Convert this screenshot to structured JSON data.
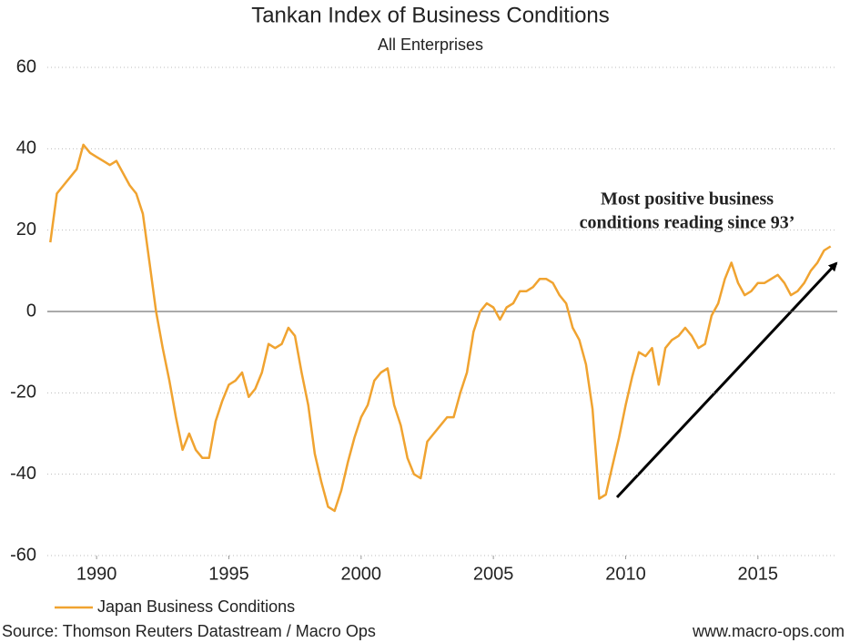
{
  "chart_data": {
    "type": "line",
    "title": "Tankan Index of Business Conditions",
    "subtitle": "All Enterprises",
    "annotation": [
      "Most positive business",
      "conditions reading since 93’"
    ],
    "source": "Source: Thomson Reuters Datastream / Macro Ops",
    "website": "www.macro-ops.com",
    "xlim": [
      1988,
      2018
    ],
    "xticks": [
      1990,
      1995,
      2000,
      2005,
      2010,
      2015
    ],
    "ylim": [
      -60,
      60
    ],
    "yticks": [
      -60,
      -40,
      -20,
      0,
      20,
      40,
      60
    ],
    "grid": true,
    "legend": "bottom-left",
    "x": [
      1988.25,
      1988.5,
      1988.75,
      1989,
      1989.25,
      1989.5,
      1989.75,
      1990,
      1990.25,
      1990.5,
      1990.75,
      1991,
      1991.25,
      1991.5,
      1991.75,
      1992,
      1992.25,
      1992.5,
      1992.75,
      1993,
      1993.25,
      1993.5,
      1993.75,
      1994,
      1994.25,
      1994.5,
      1994.75,
      1995,
      1995.25,
      1995.5,
      1995.75,
      1996,
      1996.25,
      1996.5,
      1996.75,
      1997,
      1997.25,
      1997.5,
      1997.75,
      1998,
      1998.25,
      1998.5,
      1998.75,
      1999,
      1999.25,
      1999.5,
      1999.75,
      2000,
      2000.25,
      2000.5,
      2000.75,
      2001,
      2001.25,
      2001.5,
      2001.75,
      2002,
      2002.25,
      2002.5,
      2002.75,
      2003,
      2003.25,
      2003.5,
      2003.75,
      2004,
      2004.25,
      2004.5,
      2004.75,
      2005,
      2005.25,
      2005.5,
      2005.75,
      2006,
      2006.25,
      2006.5,
      2006.75,
      2007,
      2007.25,
      2007.5,
      2007.75,
      2008,
      2008.25,
      2008.5,
      2008.75,
      2009,
      2009.25,
      2009.5,
      2009.75,
      2010,
      2010.25,
      2010.5,
      2010.75,
      2011,
      2011.25,
      2011.5,
      2011.75,
      2012,
      2012.25,
      2012.5,
      2012.75,
      2013,
      2013.25,
      2013.5,
      2013.75,
      2014,
      2014.25,
      2014.5,
      2014.75,
      2015,
      2015.25,
      2015.5,
      2015.75,
      2016,
      2016.25,
      2016.5,
      2016.75,
      2017,
      2017.25,
      2017.5,
      2017.75
    ],
    "series": [
      {
        "name": "Japan Business Conditions",
        "color": "#f0a330",
        "values": [
          17,
          29,
          31,
          33,
          35,
          41,
          39,
          38,
          37,
          36,
          37,
          34,
          31,
          29,
          24,
          12,
          0,
          -9,
          -17,
          -26,
          -34,
          -30,
          -34,
          -36,
          -36,
          -27,
          -22,
          -18,
          -17,
          -15,
          -21,
          -19,
          -15,
          -8,
          -9,
          -8,
          -4,
          -6,
          -15,
          -23,
          -35,
          -42,
          -48,
          -49,
          -44,
          -37,
          -31,
          -26,
          -23,
          -17,
          -15,
          -14,
          -23,
          -28,
          -36,
          -40,
          -41,
          -32,
          -30,
          -28,
          -26,
          -26,
          -20,
          -15,
          -5,
          0,
          2,
          1,
          -2,
          1,
          2,
          5,
          5,
          6,
          8,
          8,
          7,
          4,
          2,
          -4,
          -7,
          -13,
          -24,
          -46,
          -45,
          -38,
          -31,
          -23,
          -16,
          -10,
          -11,
          -9,
          -18,
          -9,
          -7,
          -6,
          -4,
          -6,
          -9,
          -8,
          -1,
          2,
          8,
          12,
          7,
          4,
          5,
          7,
          7,
          8,
          9,
          7,
          4,
          5,
          7,
          10,
          12,
          15,
          16
        ]
      }
    ]
  }
}
